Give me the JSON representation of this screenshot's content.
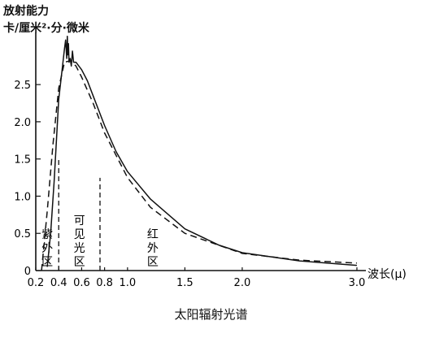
{
  "chart_data": {
    "type": "line",
    "title": "太阳辐射光谱",
    "ylabel_line1": "放射能力",
    "ylabel_line2": "卡/厘米²·分·微米",
    "xlabel": "波长(μ)",
    "xlim": [
      0.2,
      3.05
    ],
    "ylim": [
      0,
      3.2
    ],
    "y_ticks": [
      0,
      0.5,
      1.0,
      1.5,
      2.0,
      2.5
    ],
    "y_tick_labels": [
      "0",
      "0.5",
      "1.0",
      "1.5",
      "2.0",
      "2.5"
    ],
    "x_tick_labels": [
      {
        "value": 0.2,
        "label": "0.2"
      },
      {
        "value": 0.4,
        "label": "0.4"
      },
      {
        "value": 0.6,
        "label": "0.6"
      },
      {
        "value": 0.8,
        "label": "0.8"
      },
      {
        "value": 1.0,
        "label": "1.0"
      },
      {
        "value": 1.5,
        "label": "1.5"
      },
      {
        "value": 2.0,
        "label": "2.0"
      },
      {
        "value": 3.0,
        "label": "3.0"
      }
    ],
    "region_boundaries": [
      0.4,
      0.76
    ],
    "regions": [
      {
        "label": "紫外区",
        "x": 0.3
      },
      {
        "label": "可见光区",
        "x": 0.58
      },
      {
        "label": "红外区",
        "x": 1.22
      }
    ],
    "series": [
      {
        "style": "solid",
        "x": [
          0.3,
          0.33,
          0.36,
          0.38,
          0.4,
          0.43,
          0.45,
          0.46,
          0.47,
          0.475,
          0.48,
          0.485,
          0.49,
          0.5,
          0.51,
          0.52,
          0.53,
          0.55,
          0.6,
          0.65,
          0.7,
          0.8,
          0.9,
          1.0,
          1.2,
          1.5,
          1.8,
          2.0,
          2.5,
          3.0
        ],
        "y": [
          0.05,
          0.5,
          1.2,
          1.75,
          2.3,
          2.7,
          2.98,
          3.1,
          2.85,
          3.15,
          2.9,
          3.05,
          2.8,
          2.85,
          2.75,
          2.95,
          2.8,
          2.8,
          2.7,
          2.55,
          2.35,
          1.95,
          1.6,
          1.33,
          0.96,
          0.56,
          0.34,
          0.24,
          0.13,
          0.07
        ]
      },
      {
        "style": "dashed",
        "x": [
          0.25,
          0.3,
          0.35,
          0.4,
          0.45,
          0.5,
          0.55,
          0.6,
          0.7,
          0.8,
          1.0,
          1.2,
          1.5,
          2.0,
          2.5,
          3.0
        ],
        "y": [
          0.0,
          0.8,
          1.7,
          2.45,
          2.8,
          2.82,
          2.75,
          2.6,
          2.25,
          1.85,
          1.25,
          0.85,
          0.5,
          0.23,
          0.14,
          0.1
        ]
      }
    ]
  }
}
